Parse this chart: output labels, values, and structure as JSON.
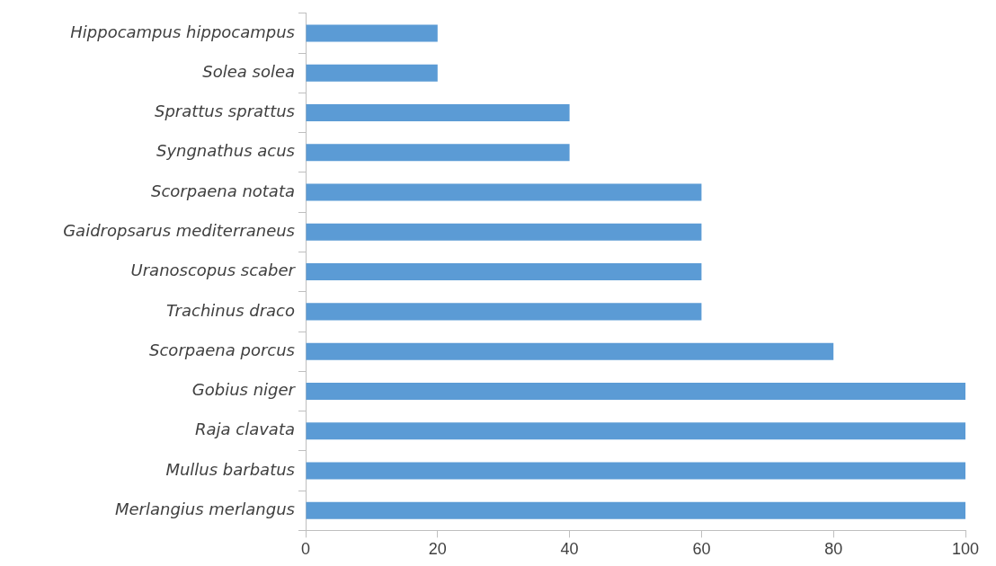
{
  "chart_data": {
    "type": "bar",
    "orientation": "horizontal",
    "categories": [
      "Hippocampus hippocampus",
      "Solea solea",
      "Sprattus sprattus",
      "Syngnathus acus",
      "Scorpaena notata",
      "Gaidropsarus mediterraneus",
      "Uranoscopus scaber",
      "Trachinus draco",
      "Scorpaena porcus",
      "Gobius niger",
      "Raja clavata",
      "Mullus barbatus",
      "Merlangius merlangus"
    ],
    "values": [
      20,
      20,
      40,
      40,
      60,
      60,
      60,
      60,
      80,
      100,
      100,
      100,
      100
    ],
    "color": "#5b9bd5",
    "xlim": [
      0,
      100
    ],
    "xticks": [
      0,
      20,
      40,
      60,
      80,
      100
    ],
    "grid": false,
    "legend": false
  }
}
